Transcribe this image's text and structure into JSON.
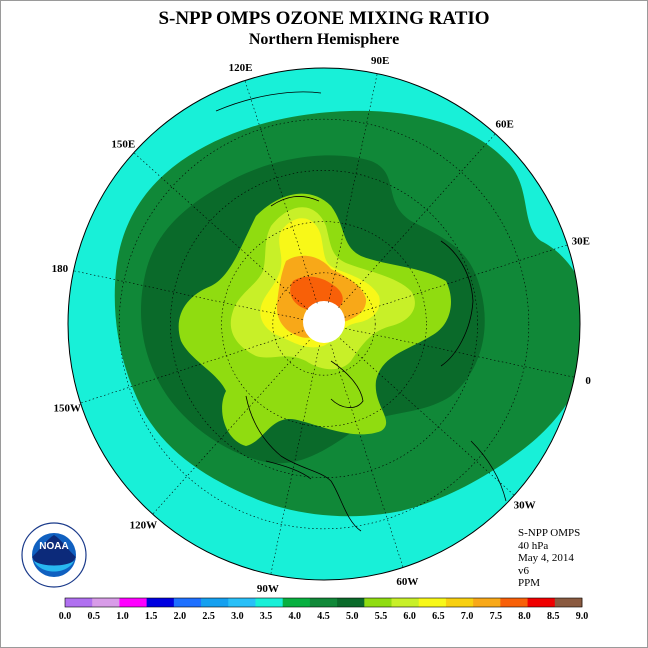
{
  "header": {
    "title": "S-NPP OMPS OZONE MIXING RATIO",
    "subtitle": "Northern Hemisphere"
  },
  "info": {
    "instrument": "S-NPP OMPS",
    "level": "40 hPa",
    "date": "May 4, 2014",
    "version": "v6",
    "units": "PPM"
  },
  "longitude_labels": [
    "90E",
    "60E",
    "30E",
    "0",
    "30W",
    "60W",
    "90W",
    "120W",
    "150W",
    "180",
    "150E",
    "120E"
  ],
  "colorbar": {
    "ticks": [
      "0.0",
      "0.5",
      "1.0",
      "1.5",
      "2.0",
      "2.5",
      "3.0",
      "3.5",
      "4.0",
      "4.5",
      "5.0",
      "5.5",
      "6.0",
      "6.5",
      "7.0",
      "7.5",
      "8.0",
      "8.5",
      "9.0"
    ],
    "colors": [
      "#b070f0",
      "#d89ce8",
      "#ff00ff",
      "#0000e0",
      "#1e70ff",
      "#14a0f0",
      "#28c0f8",
      "#18f0d8",
      "#08b040",
      "#108838",
      "#0a6a2a",
      "#90dc10",
      "#c8f028",
      "#f8f818",
      "#f8d010",
      "#f8a818",
      "#f86008",
      "#f00000",
      "#8a5a40"
    ]
  },
  "logo": {
    "text": "NOAA"
  },
  "map_colors": {
    "ocean_outer": "#28c0f8",
    "band_cyan": "#18f0d8",
    "band_green": "#108838",
    "band_dark": "#0a6a2a",
    "band_light": "#90dc10",
    "band_yellowgreen": "#c8f028",
    "band_yellow": "#f8f818",
    "band_orange": "#f8a818",
    "band_red": "#f86008",
    "pole_gap": "#ffffff"
  }
}
